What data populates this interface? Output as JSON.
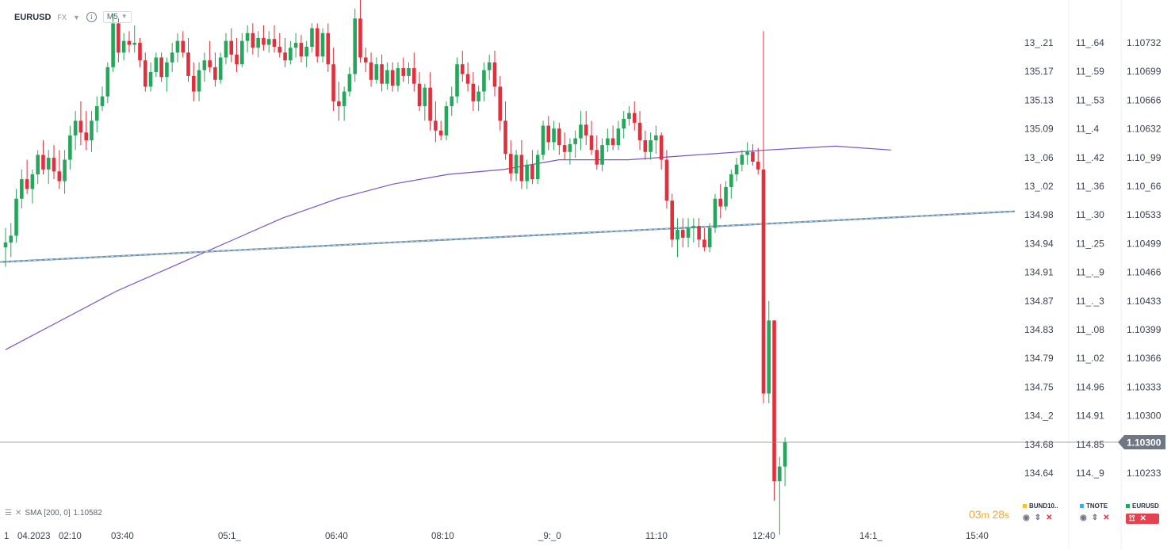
{
  "header": {
    "symbol": "EURUSD",
    "market": "FX",
    "timeframe": "M5"
  },
  "indicator": {
    "label": "SMA [200,  0]",
    "value": "1.10582"
  },
  "timer": {
    "min": "03",
    "min_unit": "m",
    "sec": "28",
    "sec_unit": "s"
  },
  "legend": [
    {
      "name": "BUND10..",
      "color": "#f2c12e"
    },
    {
      "name": "TNOTE",
      "color": "#4aa8e0"
    },
    {
      "name": "EURUSD",
      "color": "#26a65b"
    }
  ],
  "price_axes": {
    "col1": [
      "13_.21",
      "135.17",
      "135.13",
      "135.09",
      "13_.06",
      "13_.02",
      "134.98",
      "134.94",
      "134.91",
      "134.87",
      "134.83",
      "134.79",
      "134.75",
      "134._2",
      "134.68",
      "134.64"
    ],
    "col2": [
      "11_.64",
      "11_.59",
      "11_.53",
      "11_.4",
      "11_.42",
      "11_.36",
      "11_.30",
      "11_.25",
      "11_._9",
      "11_._3",
      "11_.08",
      "11_.02",
      "114.96",
      "114.91",
      "114.85",
      "114._9"
    ],
    "col3": [
      "1.10732",
      "1.10699",
      "1.10666",
      "1.10632",
      "1.10_99",
      "1.10_66",
      "1.10533",
      "1.10499",
      "1.10466",
      "1.10433",
      "1.10399",
      "1.10366",
      "1.10333",
      "1.10300",
      "1.10266",
      "1.10233"
    ]
  },
  "current_price": "1.10300",
  "time_axis": [
    "1",
    "04.2023",
    "02:10",
    "03:40",
    "05:1_",
    "06:40",
    "08:10",
    "_9:_0",
    "11:10",
    "12:40",
    "14:1_",
    "15:40"
  ],
  "chart_data": {
    "type": "candlestick",
    "symbol": "EURUSD",
    "timeframe": "M5",
    "y_range": [
      1.10217,
      1.10754
    ],
    "current_price": 1.103,
    "colors": {
      "up": "#26a65b",
      "down": "#e0303c",
      "sma": "#7b52c9",
      "trend": "#6a8fae",
      "price_line": "#888888"
    },
    "sma": {
      "period": 200,
      "value": 1.10582,
      "points": [
        [
          0,
          1.10395
        ],
        [
          20,
          1.10425
        ],
        [
          40,
          1.10455
        ],
        [
          60,
          1.1048
        ],
        [
          80,
          1.10505
        ],
        [
          100,
          1.1053
        ],
        [
          120,
          1.1055
        ],
        [
          140,
          1.10565
        ],
        [
          160,
          1.10575
        ],
        [
          180,
          1.1058
        ],
        [
          200,
          1.1059
        ],
        [
          225,
          1.1059
        ],
        [
          250,
          1.10595
        ],
        [
          275,
          1.106
        ],
        [
          300,
          1.10604
        ],
        [
          320,
          1.106
        ]
      ]
    },
    "trendline": {
      "points": [
        [
          0,
          1.10485
        ],
        [
          320,
          1.10537
        ]
      ]
    },
    "candles": [
      {
        "o": 1.105,
        "h": 1.1052,
        "l": 1.1048,
        "c": 1.10505
      },
      {
        "o": 1.10505,
        "h": 1.10525,
        "l": 1.1049,
        "c": 1.10512
      },
      {
        "o": 1.10512,
        "h": 1.1056,
        "l": 1.10505,
        "c": 1.1055
      },
      {
        "o": 1.1055,
        "h": 1.1058,
        "l": 1.1054,
        "c": 1.1057
      },
      {
        "o": 1.1057,
        "h": 1.1059,
        "l": 1.10555,
        "c": 1.1056
      },
      {
        "o": 1.1056,
        "h": 1.1058,
        "l": 1.10545,
        "c": 1.10575
      },
      {
        "o": 1.10575,
        "h": 1.106,
        "l": 1.10565,
        "c": 1.10595
      },
      {
        "o": 1.10595,
        "h": 1.1061,
        "l": 1.10575,
        "c": 1.1058
      },
      {
        "o": 1.1058,
        "h": 1.106,
        "l": 1.10565,
        "c": 1.10592
      },
      {
        "o": 1.10592,
        "h": 1.10605,
        "l": 1.1057,
        "c": 1.10578
      },
      {
        "o": 1.10578,
        "h": 1.106,
        "l": 1.1056,
        "c": 1.10568
      },
      {
        "o": 1.10568,
        "h": 1.106,
        "l": 1.10555,
        "c": 1.1059
      },
      {
        "o": 1.1059,
        "h": 1.10625,
        "l": 1.1058,
        "c": 1.10615
      },
      {
        "o": 1.10615,
        "h": 1.1064,
        "l": 1.106,
        "c": 1.1063
      },
      {
        "o": 1.1063,
        "h": 1.1065,
        "l": 1.10605,
        "c": 1.10618
      },
      {
        "o": 1.10618,
        "h": 1.1064,
        "l": 1.106,
        "c": 1.1061
      },
      {
        "o": 1.1061,
        "h": 1.1064,
        "l": 1.10598,
        "c": 1.1063
      },
      {
        "o": 1.1063,
        "h": 1.10655,
        "l": 1.10618,
        "c": 1.10645
      },
      {
        "o": 1.10645,
        "h": 1.10665,
        "l": 1.1064,
        "c": 1.10655
      },
      {
        "o": 1.10655,
        "h": 1.1069,
        "l": 1.10648,
        "c": 1.10685
      },
      {
        "o": 1.10685,
        "h": 1.1074,
        "l": 1.1068,
        "c": 1.1073
      },
      {
        "o": 1.1073,
        "h": 1.10735,
        "l": 1.1069,
        "c": 1.107
      },
      {
        "o": 1.107,
        "h": 1.1072,
        "l": 1.10692,
        "c": 1.10712
      },
      {
        "o": 1.10712,
        "h": 1.10722,
        "l": 1.107,
        "c": 1.10708
      },
      {
        "o": 1.10708,
        "h": 1.10728,
        "l": 1.107,
        "c": 1.1071
      },
      {
        "o": 1.1071,
        "h": 1.10715,
        "l": 1.10685,
        "c": 1.10692
      },
      {
        "o": 1.10692,
        "h": 1.107,
        "l": 1.1066,
        "c": 1.10665
      },
      {
        "o": 1.10665,
        "h": 1.1069,
        "l": 1.1066,
        "c": 1.1068
      },
      {
        "o": 1.1068,
        "h": 1.107,
        "l": 1.10675,
        "c": 1.10695
      },
      {
        "o": 1.10695,
        "h": 1.107,
        "l": 1.1067,
        "c": 1.10675
      },
      {
        "o": 1.10675,
        "h": 1.10695,
        "l": 1.1066,
        "c": 1.1069
      },
      {
        "o": 1.1069,
        "h": 1.1071,
        "l": 1.1068,
        "c": 1.107
      },
      {
        "o": 1.107,
        "h": 1.1072,
        "l": 1.1069,
        "c": 1.10712
      },
      {
        "o": 1.10712,
        "h": 1.10722,
        "l": 1.10695,
        "c": 1.107
      },
      {
        "o": 1.107,
        "h": 1.10715,
        "l": 1.1067,
        "c": 1.10676
      },
      {
        "o": 1.10676,
        "h": 1.1069,
        "l": 1.1065,
        "c": 1.1066
      },
      {
        "o": 1.1066,
        "h": 1.1069,
        "l": 1.1065,
        "c": 1.10682
      },
      {
        "o": 1.10682,
        "h": 1.107,
        "l": 1.1067,
        "c": 1.10692
      },
      {
        "o": 1.10692,
        "h": 1.10712,
        "l": 1.1068,
        "c": 1.10685
      },
      {
        "o": 1.10685,
        "h": 1.107,
        "l": 1.10665,
        "c": 1.10672
      },
      {
        "o": 1.10672,
        "h": 1.107,
        "l": 1.10668,
        "c": 1.10695
      },
      {
        "o": 1.10695,
        "h": 1.1072,
        "l": 1.10688,
        "c": 1.10712
      },
      {
        "o": 1.10712,
        "h": 1.10725,
        "l": 1.1069,
        "c": 1.10698
      },
      {
        "o": 1.10698,
        "h": 1.10715,
        "l": 1.1068,
        "c": 1.10688
      },
      {
        "o": 1.10688,
        "h": 1.1072,
        "l": 1.10685,
        "c": 1.10712
      },
      {
        "o": 1.10712,
        "h": 1.10728,
        "l": 1.107,
        "c": 1.1072
      },
      {
        "o": 1.1072,
        "h": 1.1073,
        "l": 1.10698,
        "c": 1.10705
      },
      {
        "o": 1.10705,
        "h": 1.10722,
        "l": 1.10695,
        "c": 1.10715
      },
      {
        "o": 1.10715,
        "h": 1.10728,
        "l": 1.10702,
        "c": 1.10708
      },
      {
        "o": 1.10708,
        "h": 1.10722,
        "l": 1.107,
        "c": 1.10714
      },
      {
        "o": 1.10714,
        "h": 1.10728,
        "l": 1.107,
        "c": 1.10706
      },
      {
        "o": 1.10706,
        "h": 1.1072,
        "l": 1.10695,
        "c": 1.107
      },
      {
        "o": 1.107,
        "h": 1.10715,
        "l": 1.10685,
        "c": 1.10692
      },
      {
        "o": 1.10692,
        "h": 1.10712,
        "l": 1.10688,
        "c": 1.10705
      },
      {
        "o": 1.10705,
        "h": 1.1072,
        "l": 1.10695,
        "c": 1.1071
      },
      {
        "o": 1.1071,
        "h": 1.10718,
        "l": 1.1069,
        "c": 1.10696
      },
      {
        "o": 1.10696,
        "h": 1.10712,
        "l": 1.10685,
        "c": 1.10706
      },
      {
        "o": 1.10706,
        "h": 1.1073,
        "l": 1.107,
        "c": 1.10725
      },
      {
        "o": 1.10725,
        "h": 1.1073,
        "l": 1.1069,
        "c": 1.10696
      },
      {
        "o": 1.10696,
        "h": 1.10725,
        "l": 1.1069,
        "c": 1.1072
      },
      {
        "o": 1.1072,
        "h": 1.1073,
        "l": 1.1068,
        "c": 1.10688
      },
      {
        "o": 1.10688,
        "h": 1.10705,
        "l": 1.1064,
        "c": 1.1065
      },
      {
        "o": 1.1065,
        "h": 1.1067,
        "l": 1.1063,
        "c": 1.10645
      },
      {
        "o": 1.10645,
        "h": 1.10665,
        "l": 1.1063,
        "c": 1.1066
      },
      {
        "o": 1.1066,
        "h": 1.10685,
        "l": 1.10655,
        "c": 1.10678
      },
      {
        "o": 1.10678,
        "h": 1.10745,
        "l": 1.1067,
        "c": 1.10735
      },
      {
        "o": 1.10735,
        "h": 1.10755,
        "l": 1.1069,
        "c": 1.10695
      },
      {
        "o": 1.10695,
        "h": 1.10705,
        "l": 1.1068,
        "c": 1.1069
      },
      {
        "o": 1.1069,
        "h": 1.107,
        "l": 1.10665,
        "c": 1.10672
      },
      {
        "o": 1.10672,
        "h": 1.10695,
        "l": 1.10668,
        "c": 1.10688
      },
      {
        "o": 1.10688,
        "h": 1.10698,
        "l": 1.1066,
        "c": 1.10668
      },
      {
        "o": 1.10668,
        "h": 1.1069,
        "l": 1.10662,
        "c": 1.10682
      },
      {
        "o": 1.10682,
        "h": 1.1069,
        "l": 1.1066,
        "c": 1.10666
      },
      {
        "o": 1.10666,
        "h": 1.1069,
        "l": 1.1066,
        "c": 1.10684
      },
      {
        "o": 1.10684,
        "h": 1.10695,
        "l": 1.1067,
        "c": 1.10676
      },
      {
        "o": 1.10676,
        "h": 1.1069,
        "l": 1.10668,
        "c": 1.10684
      },
      {
        "o": 1.10684,
        "h": 1.107,
        "l": 1.1066,
        "c": 1.10668
      },
      {
        "o": 1.10668,
        "h": 1.1068,
        "l": 1.1064,
        "c": 1.10645
      },
      {
        "o": 1.10645,
        "h": 1.10668,
        "l": 1.1063,
        "c": 1.10664
      },
      {
        "o": 1.10664,
        "h": 1.1068,
        "l": 1.1062,
        "c": 1.1063
      },
      {
        "o": 1.1063,
        "h": 1.1065,
        "l": 1.10608,
        "c": 1.1062
      },
      {
        "o": 1.1062,
        "h": 1.1063,
        "l": 1.1061,
        "c": 1.10615
      },
      {
        "o": 1.10615,
        "h": 1.1065,
        "l": 1.1061,
        "c": 1.10645
      },
      {
        "o": 1.10645,
        "h": 1.10665,
        "l": 1.10635,
        "c": 1.10655
      },
      {
        "o": 1.10655,
        "h": 1.10695,
        "l": 1.10648,
        "c": 1.10688
      },
      {
        "o": 1.10688,
        "h": 1.10702,
        "l": 1.1067,
        "c": 1.10678
      },
      {
        "o": 1.10678,
        "h": 1.1069,
        "l": 1.1066,
        "c": 1.10668
      },
      {
        "o": 1.10668,
        "h": 1.1068,
        "l": 1.1064,
        "c": 1.1065
      },
      {
        "o": 1.1065,
        "h": 1.10666,
        "l": 1.1064,
        "c": 1.1066
      },
      {
        "o": 1.1066,
        "h": 1.1069,
        "l": 1.1065,
        "c": 1.10682
      },
      {
        "o": 1.10682,
        "h": 1.10698,
        "l": 1.10672,
        "c": 1.1069
      },
      {
        "o": 1.1069,
        "h": 1.10702,
        "l": 1.10655,
        "c": 1.10665
      },
      {
        "o": 1.10665,
        "h": 1.10676,
        "l": 1.1062,
        "c": 1.1063
      },
      {
        "o": 1.1063,
        "h": 1.1065,
        "l": 1.1059,
        "c": 1.10596
      },
      {
        "o": 1.10596,
        "h": 1.1061,
        "l": 1.10568,
        "c": 1.10576
      },
      {
        "o": 1.10576,
        "h": 1.106,
        "l": 1.10568,
        "c": 1.10595
      },
      {
        "o": 1.10595,
        "h": 1.1061,
        "l": 1.1056,
        "c": 1.10568
      },
      {
        "o": 1.10568,
        "h": 1.1059,
        "l": 1.1056,
        "c": 1.10585
      },
      {
        "o": 1.10585,
        "h": 1.106,
        "l": 1.10565,
        "c": 1.1057
      },
      {
        "o": 1.1057,
        "h": 1.106,
        "l": 1.10565,
        "c": 1.10595
      },
      {
        "o": 1.10595,
        "h": 1.1063,
        "l": 1.1059,
        "c": 1.10625
      },
      {
        "o": 1.10625,
        "h": 1.10635,
        "l": 1.106,
        "c": 1.10608
      },
      {
        "o": 1.10608,
        "h": 1.1063,
        "l": 1.106,
        "c": 1.10622
      },
      {
        "o": 1.10622,
        "h": 1.10628,
        "l": 1.10595,
        "c": 1.10605
      },
      {
        "o": 1.10605,
        "h": 1.10618,
        "l": 1.1059,
        "c": 1.10598
      },
      {
        "o": 1.10598,
        "h": 1.10612,
        "l": 1.10585,
        "c": 1.10606
      },
      {
        "o": 1.10606,
        "h": 1.1062,
        "l": 1.10592,
        "c": 1.10612
      },
      {
        "o": 1.10612,
        "h": 1.1064,
        "l": 1.106,
        "c": 1.10626
      },
      {
        "o": 1.10626,
        "h": 1.1064,
        "l": 1.10605,
        "c": 1.10615
      },
      {
        "o": 1.10615,
        "h": 1.1063,
        "l": 1.10595,
        "c": 1.106
      },
      {
        "o": 1.106,
        "h": 1.10615,
        "l": 1.1058,
        "c": 1.10585
      },
      {
        "o": 1.10585,
        "h": 1.10612,
        "l": 1.10578,
        "c": 1.10605
      },
      {
        "o": 1.10605,
        "h": 1.10622,
        "l": 1.10598,
        "c": 1.10612
      },
      {
        "o": 1.10612,
        "h": 1.10625,
        "l": 1.106,
        "c": 1.10605
      },
      {
        "o": 1.10605,
        "h": 1.1063,
        "l": 1.106,
        "c": 1.10622
      },
      {
        "o": 1.10622,
        "h": 1.1064,
        "l": 1.10612,
        "c": 1.10632
      },
      {
        "o": 1.10632,
        "h": 1.10645,
        "l": 1.10625,
        "c": 1.10638
      },
      {
        "o": 1.10638,
        "h": 1.1065,
        "l": 1.1062,
        "c": 1.10628
      },
      {
        "o": 1.10628,
        "h": 1.1064,
        "l": 1.106,
        "c": 1.1061
      },
      {
        "o": 1.1061,
        "h": 1.1062,
        "l": 1.1059,
        "c": 1.10598
      },
      {
        "o": 1.10598,
        "h": 1.10618,
        "l": 1.1059,
        "c": 1.1061
      },
      {
        "o": 1.1061,
        "h": 1.10625,
        "l": 1.10596,
        "c": 1.10615
      },
      {
        "o": 1.10615,
        "h": 1.10618,
        "l": 1.1058,
        "c": 1.1059
      },
      {
        "o": 1.1059,
        "h": 1.106,
        "l": 1.1054,
        "c": 1.10548
      },
      {
        "o": 1.10548,
        "h": 1.10555,
        "l": 1.105,
        "c": 1.10508
      },
      {
        "o": 1.10508,
        "h": 1.1053,
        "l": 1.1049,
        "c": 1.10518
      },
      {
        "o": 1.10518,
        "h": 1.1053,
        "l": 1.105,
        "c": 1.1051
      },
      {
        "o": 1.1051,
        "h": 1.1053,
        "l": 1.105,
        "c": 1.1052
      },
      {
        "o": 1.1052,
        "h": 1.1053,
        "l": 1.10505,
        "c": 1.10522
      },
      {
        "o": 1.10522,
        "h": 1.1053,
        "l": 1.105,
        "c": 1.10508
      },
      {
        "o": 1.10508,
        "h": 1.1052,
        "l": 1.10496,
        "c": 1.105
      },
      {
        "o": 1.105,
        "h": 1.10525,
        "l": 1.10495,
        "c": 1.1052
      },
      {
        "o": 1.1052,
        "h": 1.10555,
        "l": 1.10515,
        "c": 1.1055
      },
      {
        "o": 1.1055,
        "h": 1.10565,
        "l": 1.1053,
        "c": 1.10542
      },
      {
        "o": 1.10542,
        "h": 1.10568,
        "l": 1.10538,
        "c": 1.10562
      },
      {
        "o": 1.10562,
        "h": 1.1058,
        "l": 1.1055,
        "c": 1.10575
      },
      {
        "o": 1.10575,
        "h": 1.10592,
        "l": 1.10568,
        "c": 1.10585
      },
      {
        "o": 1.10585,
        "h": 1.106,
        "l": 1.10578,
        "c": 1.10595
      },
      {
        "o": 1.10595,
        "h": 1.10608,
        "l": 1.10585,
        "c": 1.10598
      },
      {
        "o": 1.10598,
        "h": 1.10606,
        "l": 1.10584,
        "c": 1.10588
      },
      {
        "o": 1.10588,
        "h": 1.10602,
        "l": 1.10575,
        "c": 1.1058
      },
      {
        "o": 1.1058,
        "h": 1.10722,
        "l": 1.1034,
        "c": 1.1035
      },
      {
        "o": 1.1035,
        "h": 1.10445,
        "l": 1.1034,
        "c": 1.10425
      },
      {
        "o": 1.10425,
        "h": 1.10425,
        "l": 1.1024,
        "c": 1.1026
      },
      {
        "o": 1.1026,
        "h": 1.10285,
        "l": 1.10205,
        "c": 1.10275
      },
      {
        "o": 1.10275,
        "h": 1.10305,
        "l": 1.10255,
        "c": 1.103
      }
    ]
  }
}
